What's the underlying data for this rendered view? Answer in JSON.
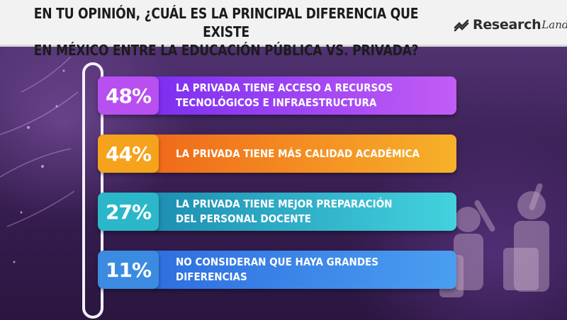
{
  "header": {
    "title": "EN TU OPINIÓN, ¿CUÁL ES LA PRINCIPAL DIFERENCIA QUE EXISTE EN MÉXICO ENTRE LA EDUCACIÓN PÚBLICA VS. PRIVADA?",
    "title_line1": "EN TU OPINIÓN, ¿CUÁL ES LA PRINCIPAL DIFERENCIA QUE EXISTE",
    "title_line2": "EN MÉXICO ENTRE LA EDUCACIÓN PÚBLICA VS. PRIVADA?",
    "logo_text_1": "Research",
    "logo_text_2": "Land"
  },
  "chart_data": {
    "type": "bar",
    "title": "EN TU OPINIÓN, ¿CUÁL ES LA PRINCIPAL DIFERENCIA QUE EXISTE EN MÉXICO ENTRE LA EDUCACIÓN PÚBLICA VS. PRIVADA?",
    "categories": [
      "LA PRIVADA TIENE ACCESO A RECURSOS TECNOLÓGICOS E INFRAESTRUCTURA",
      "LA PRIVADA TIENE MÁS CALIDAD ACADÉMICA",
      "LA PRIVADA TIENE MEJOR PREPARACIÓN DEL PERSONAL DOCENTE",
      "NO CONSIDERAN QUE HAYA GRANDES DIFERENCIAS"
    ],
    "values": [
      48,
      44,
      27,
      11
    ],
    "unit": "%",
    "grid": false,
    "legend": "none"
  },
  "rows": [
    {
      "pct": "48%",
      "label": "LA PRIVADA TIENE ACCESO A RECURSOS\nTECNOLÓGICOS E INFRAESTRUCTURA",
      "pct_color": "#b84ff0",
      "bar_from": "#7d2ff0",
      "bar_to": "#c25cf5"
    },
    {
      "pct": "44%",
      "label": "LA PRIVADA TIENE MÁS CALIDAD ACADÉMICA",
      "pct_color": "#f5a21c",
      "bar_from": "#f06a1a",
      "bar_to": "#f7b12a"
    },
    {
      "pct": "27%",
      "label": "LA PRIVADA TIENE MEJOR PREPARACIÓN\nDEL PERSONAL DOCENTE",
      "pct_color": "#2bb7c9",
      "bar_from": "#1e8fb2",
      "bar_to": "#43d2de"
    },
    {
      "pct": "11%",
      "label": "NO CONSIDERAN QUE HAYA GRANDES\nDIFERENCIAS",
      "pct_color": "#3b8be0",
      "bar_from": "#2f6fe0",
      "bar_to": "#4a9ef0"
    }
  ],
  "colors": {
    "header_bg": "#f2f2f2",
    "background": "#3c2258"
  }
}
